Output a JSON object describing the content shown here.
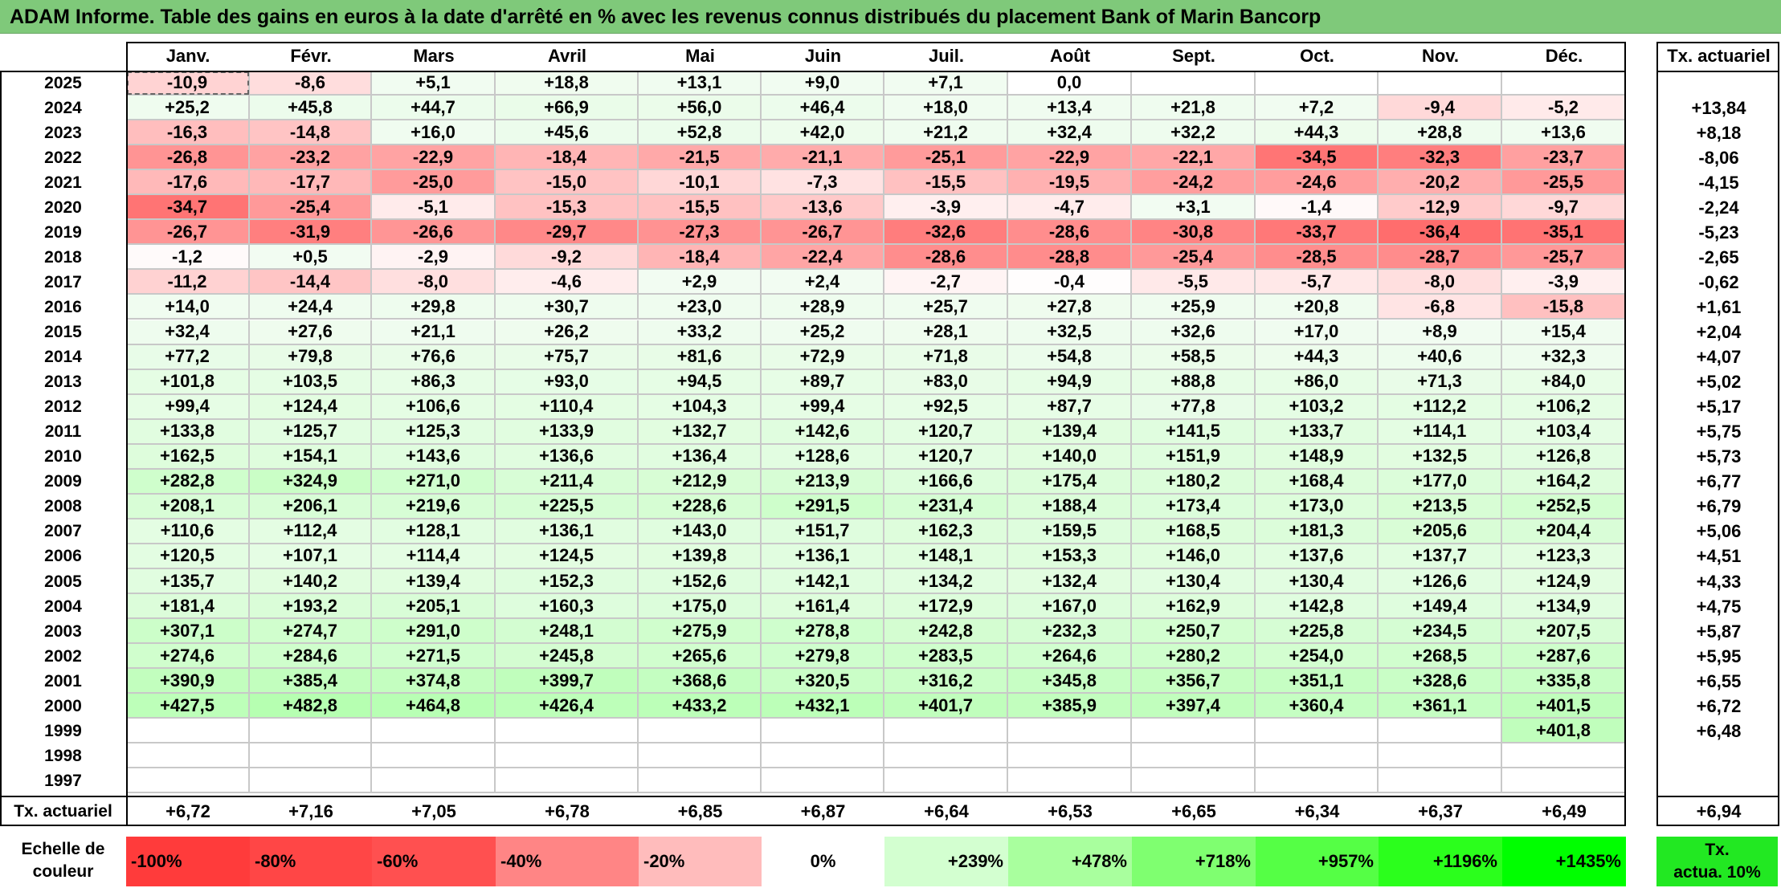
{
  "title": "ADAM Informe. Table des gains en euros à la date d'arrêté en % avec les revenus connus distribués du placement Bank of Marin Bancorp",
  "months": [
    "Janv.",
    "Févr.",
    "Mars",
    "Avril",
    "Mai",
    "Juin",
    "Juil.",
    "Août",
    "Sept.",
    "Oct.",
    "Nov.",
    "Déc."
  ],
  "rate_header": "Tx. actuariel",
  "rows": [
    {
      "year": "2025",
      "values": [
        "-10,9",
        "-8,6",
        "+5,1",
        "+18,8",
        "+13,1",
        "+9,0",
        "+7,1",
        "0,0",
        "",
        "",
        "",
        ""
      ],
      "rate": ""
    },
    {
      "year": "2024",
      "values": [
        "+25,2",
        "+45,8",
        "+44,7",
        "+66,9",
        "+56,0",
        "+46,4",
        "+18,0",
        "+13,4",
        "+21,8",
        "+7,2",
        "-9,4",
        "-5,2"
      ],
      "rate": "+13,84"
    },
    {
      "year": "2023",
      "values": [
        "-16,3",
        "-14,8",
        "+16,0",
        "+45,6",
        "+52,8",
        "+42,0",
        "+21,2",
        "+32,4",
        "+32,2",
        "+44,3",
        "+28,8",
        "+13,6"
      ],
      "rate": "+8,18"
    },
    {
      "year": "2022",
      "values": [
        "-26,8",
        "-23,2",
        "-22,9",
        "-18,4",
        "-21,5",
        "-21,1",
        "-25,1",
        "-22,9",
        "-22,1",
        "-34,5",
        "-32,3",
        "-23,7"
      ],
      "rate": "-8,06"
    },
    {
      "year": "2021",
      "values": [
        "-17,6",
        "-17,7",
        "-25,0",
        "-15,0",
        "-10,1",
        "-7,3",
        "-15,5",
        "-19,5",
        "-24,2",
        "-24,6",
        "-20,2",
        "-25,5"
      ],
      "rate": "-4,15"
    },
    {
      "year": "2020",
      "values": [
        "-34,7",
        "-25,4",
        "-5,1",
        "-15,3",
        "-15,5",
        "-13,6",
        "-3,9",
        "-4,7",
        "+3,1",
        "-1,4",
        "-12,9",
        "-9,7"
      ],
      "rate": "-2,24"
    },
    {
      "year": "2019",
      "values": [
        "-26,7",
        "-31,9",
        "-26,6",
        "-29,7",
        "-27,3",
        "-26,7",
        "-32,6",
        "-28,6",
        "-30,8",
        "-33,7",
        "-36,4",
        "-35,1"
      ],
      "rate": "-5,23"
    },
    {
      "year": "2018",
      "values": [
        "-1,2",
        "+0,5",
        "-2,9",
        "-9,2",
        "-18,4",
        "-22,4",
        "-28,6",
        "-28,8",
        "-25,4",
        "-28,5",
        "-28,7",
        "-25,7"
      ],
      "rate": "-2,65"
    },
    {
      "year": "2017",
      "values": [
        "-11,2",
        "-14,4",
        "-8,0",
        "-4,6",
        "+2,9",
        "+2,4",
        "-2,7",
        "-0,4",
        "-5,5",
        "-5,7",
        "-8,0",
        "-3,9"
      ],
      "rate": "-0,62"
    },
    {
      "year": "2016",
      "values": [
        "+14,0",
        "+24,4",
        "+29,8",
        "+30,7",
        "+23,0",
        "+28,9",
        "+25,7",
        "+27,8",
        "+25,9",
        "+20,8",
        "-6,8",
        "-15,8"
      ],
      "rate": "+1,61"
    },
    {
      "year": "2015",
      "values": [
        "+32,4",
        "+27,6",
        "+21,1",
        "+26,2",
        "+33,2",
        "+25,2",
        "+28,1",
        "+32,5",
        "+32,6",
        "+17,0",
        "+8,9",
        "+15,4"
      ],
      "rate": "+2,04"
    },
    {
      "year": "2014",
      "values": [
        "+77,2",
        "+79,8",
        "+76,6",
        "+75,7",
        "+81,6",
        "+72,9",
        "+71,8",
        "+54,8",
        "+58,5",
        "+44,3",
        "+40,6",
        "+32,3"
      ],
      "rate": "+4,07"
    },
    {
      "year": "2013",
      "values": [
        "+101,8",
        "+103,5",
        "+86,3",
        "+93,0",
        "+94,5",
        "+89,7",
        "+83,0",
        "+94,9",
        "+88,8",
        "+86,0",
        "+71,3",
        "+84,0"
      ],
      "rate": "+5,02"
    },
    {
      "year": "2012",
      "values": [
        "+99,4",
        "+124,4",
        "+106,6",
        "+110,4",
        "+104,3",
        "+99,4",
        "+92,5",
        "+87,7",
        "+77,8",
        "+103,2",
        "+112,2",
        "+106,2"
      ],
      "rate": "+5,17"
    },
    {
      "year": "2011",
      "values": [
        "+133,8",
        "+125,7",
        "+125,3",
        "+133,9",
        "+132,7",
        "+142,6",
        "+120,7",
        "+139,4",
        "+141,5",
        "+133,7",
        "+114,1",
        "+103,4"
      ],
      "rate": "+5,75"
    },
    {
      "year": "2010",
      "values": [
        "+162,5",
        "+154,1",
        "+143,6",
        "+136,6",
        "+136,4",
        "+128,6",
        "+120,7",
        "+140,0",
        "+151,9",
        "+148,9",
        "+132,5",
        "+126,8"
      ],
      "rate": "+5,73"
    },
    {
      "year": "2009",
      "values": [
        "+282,8",
        "+324,9",
        "+271,0",
        "+211,4",
        "+212,9",
        "+213,9",
        "+166,6",
        "+175,4",
        "+180,2",
        "+168,4",
        "+177,0",
        "+164,2"
      ],
      "rate": "+6,77"
    },
    {
      "year": "2008",
      "values": [
        "+208,1",
        "+206,1",
        "+219,6",
        "+225,5",
        "+228,6",
        "+291,5",
        "+231,4",
        "+188,4",
        "+173,4",
        "+173,0",
        "+213,5",
        "+252,5"
      ],
      "rate": "+6,79"
    },
    {
      "year": "2007",
      "values": [
        "+110,6",
        "+112,4",
        "+128,1",
        "+136,1",
        "+143,0",
        "+151,7",
        "+162,3",
        "+159,5",
        "+168,5",
        "+181,3",
        "+205,6",
        "+204,4"
      ],
      "rate": "+5,06"
    },
    {
      "year": "2006",
      "values": [
        "+120,5",
        "+107,1",
        "+114,4",
        "+124,5",
        "+139,8",
        "+136,1",
        "+148,1",
        "+153,3",
        "+146,0",
        "+137,6",
        "+137,7",
        "+123,3"
      ],
      "rate": "+4,51"
    },
    {
      "year": "2005",
      "values": [
        "+135,7",
        "+140,2",
        "+139,4",
        "+152,3",
        "+152,6",
        "+142,1",
        "+134,2",
        "+132,4",
        "+130,4",
        "+130,4",
        "+126,6",
        "+124,9"
      ],
      "rate": "+4,33"
    },
    {
      "year": "2004",
      "values": [
        "+181,4",
        "+193,2",
        "+205,1",
        "+160,3",
        "+175,0",
        "+161,4",
        "+172,9",
        "+167,0",
        "+162,9",
        "+142,8",
        "+149,4",
        "+134,9"
      ],
      "rate": "+4,75"
    },
    {
      "year": "2003",
      "values": [
        "+307,1",
        "+274,7",
        "+291,0",
        "+248,1",
        "+275,9",
        "+278,8",
        "+242,8",
        "+232,3",
        "+250,7",
        "+225,8",
        "+234,5",
        "+207,5"
      ],
      "rate": "+5,87"
    },
    {
      "year": "2002",
      "values": [
        "+274,6",
        "+284,6",
        "+271,5",
        "+245,8",
        "+265,6",
        "+279,8",
        "+283,5",
        "+264,6",
        "+280,2",
        "+254,0",
        "+268,5",
        "+287,6"
      ],
      "rate": "+5,95"
    },
    {
      "year": "2001",
      "values": [
        "+390,9",
        "+385,4",
        "+374,8",
        "+399,7",
        "+368,6",
        "+320,5",
        "+316,2",
        "+345,8",
        "+356,7",
        "+351,1",
        "+328,6",
        "+335,8"
      ],
      "rate": "+6,55"
    },
    {
      "year": "2000",
      "values": [
        "+427,5",
        "+482,8",
        "+464,8",
        "+426,4",
        "+433,2",
        "+432,1",
        "+401,7",
        "+385,9",
        "+397,4",
        "+360,4",
        "+361,1",
        "+401,5"
      ],
      "rate": "+6,72"
    },
    {
      "year": "1999",
      "values": [
        "",
        "",
        "",
        "",
        "",
        "",
        "",
        "",
        "",
        "",
        "",
        "+401,8"
      ],
      "rate": "+6,48"
    },
    {
      "year": "1998",
      "values": [
        "",
        "",
        "",
        "",
        "",
        "",
        "",
        "",
        "",
        "",
        "",
        ""
      ],
      "rate": ""
    },
    {
      "year": "1997",
      "values": [
        "",
        "",
        "",
        "",
        "",
        "",
        "",
        "",
        "",
        "",
        "",
        ""
      ],
      "rate": ""
    }
  ],
  "footer": {
    "label": "Tx. actuariel",
    "values": [
      "+6,72",
      "+7,16",
      "+7,05",
      "+6,78",
      "+6,85",
      "+6,87",
      "+6,64",
      "+6,53",
      "+6,65",
      "+6,34",
      "+6,37",
      "+6,49"
    ],
    "total": "+6,94"
  },
  "legend": {
    "label_line1": "Echelle de",
    "label_line2": "couleur",
    "items": [
      {
        "text": "-100%",
        "color": "#ff3b3b",
        "align": "left"
      },
      {
        "text": "-80%",
        "color": "#ff4646",
        "align": "left"
      },
      {
        "text": "-60%",
        "color": "#ff5050",
        "align": "left"
      },
      {
        "text": "-40%",
        "color": "#ff8585",
        "align": "left"
      },
      {
        "text": "-20%",
        "color": "#ffbcbc",
        "align": "left"
      },
      {
        "text": "0%",
        "color": "#ffffff",
        "align": "center"
      },
      {
        "text": "+239%",
        "color": "#d3ffd0",
        "align": "right"
      },
      {
        "text": "+478%",
        "color": "#a9ff9e",
        "align": "right"
      },
      {
        "text": "+718%",
        "color": "#7fff70",
        "align": "right"
      },
      {
        "text": "+957%",
        "color": "#55ff45",
        "align": "right"
      },
      {
        "text": "+1196%",
        "color": "#2bff1c",
        "align": "right"
      },
      {
        "text": "+1435%",
        "color": "#00ff00",
        "align": "right"
      }
    ],
    "rate_line1": "Tx.",
    "rate_line2": "actua. 10%",
    "rate_color": "#22e822"
  }
}
